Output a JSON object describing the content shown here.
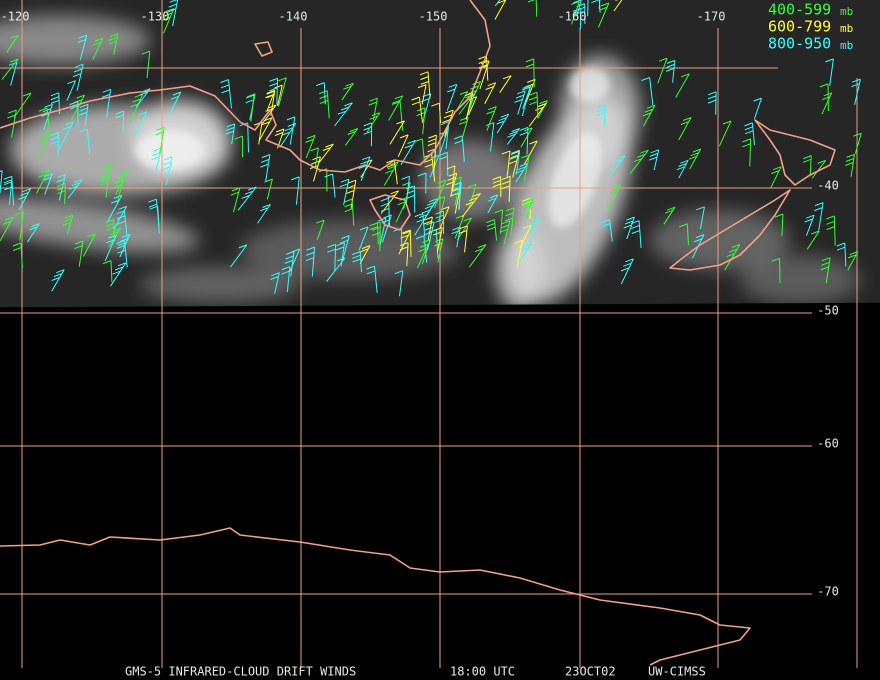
{
  "map": {
    "longitude_labels": [
      "-120",
      "-130",
      "-140",
      "-150",
      "-160",
      "-170"
    ],
    "latitude_labels": [
      "-40",
      "-50",
      "-60",
      "-70"
    ],
    "legend": [
      {
        "label": "400-599",
        "unit": "mb",
        "color": "#33ff33"
      },
      {
        "label": "600-799",
        "unit": "mb",
        "color": "#ffff33"
      },
      {
        "label": "800-950",
        "unit": "mb",
        "color": "#33ffff"
      }
    ],
    "footer": [
      "GMS-5 INFRARED-CLOUD DRIFT WINDS",
      "18:00 UTC",
      "23OCT02",
      "UW-CIMSS"
    ]
  }
}
